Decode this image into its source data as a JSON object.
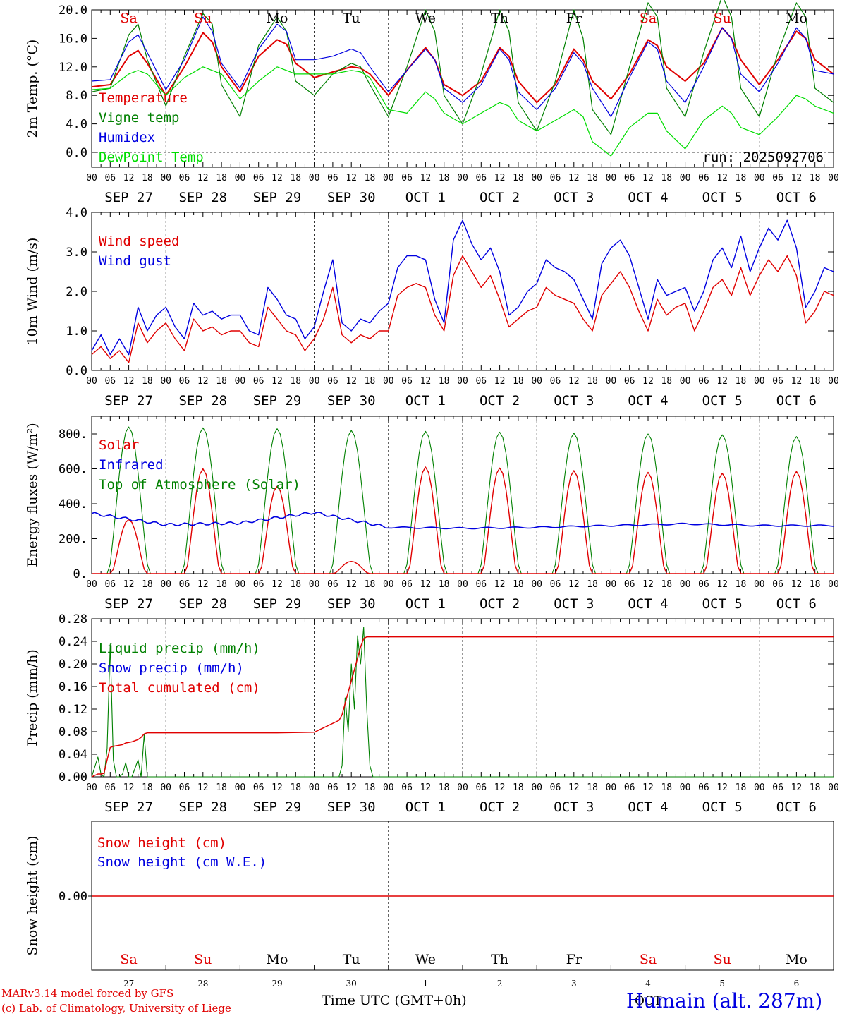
{
  "days": {
    "first_dates": [
      "SEP 27",
      "SEP 28",
      "SEP 29",
      "SEP 30",
      "OCT 1",
      "OCT 2",
      "OCT 3",
      "OCT 4",
      "OCT 5",
      "OCT 6"
    ],
    "weekday": [
      "Sa",
      "Su",
      "Mo",
      "Tu",
      "We",
      "Th",
      "Fr",
      "Sa",
      "Su",
      "Mo"
    ],
    "weekday_colors": [
      "#e00000",
      "#e00000",
      "#000000",
      "#000000",
      "#000000",
      "#000000",
      "#000000",
      "#e00000",
      "#e00000",
      "#000000"
    ],
    "day_numbers": [
      "27",
      "28",
      "29",
      "30",
      "1",
      "2",
      "3",
      "4",
      "5",
      "6"
    ],
    "hour_labels": [
      "00",
      "06",
      "12",
      "18"
    ],
    "last_hour": "00"
  },
  "footer": {
    "model": "MARv3.14 model forced by GFS",
    "credit": "(c) Lab. of Climatology, University of Liege",
    "xlabel": "Time UTC (GMT+0h)",
    "month": "OCT",
    "station": "Humain (alt. 287m)"
  },
  "colors": {
    "red": "#e00000",
    "green": "#008000",
    "blue": "#0000e0",
    "lightgreen": "#00dd00",
    "black": "#000000"
  },
  "chart_data": [
    {
      "type": "line",
      "id": "temperature",
      "ylabel": "2m Temp. (°C)",
      "ylim": [
        -2,
        20
      ],
      "yticks": [
        "0.0",
        "4.0",
        "8.0",
        "12.0",
        "16.0",
        "20.0"
      ],
      "ytick_values": [
        0,
        4,
        8,
        12,
        16,
        20
      ],
      "run_label": "run: 2025092706",
      "legend": [
        "Temperature",
        "Vigne temp",
        "Humidex",
        "DewPoint Temp"
      ],
      "x_hours": [
        0,
        6,
        12,
        15,
        18,
        24,
        30,
        36,
        39,
        42,
        48,
        54,
        60,
        63,
        66,
        72,
        78,
        84,
        87,
        90,
        96,
        102,
        108,
        111,
        114,
        120,
        126,
        132,
        135,
        138,
        144,
        150,
        156,
        159,
        162,
        168,
        174,
        180,
        183,
        186,
        192,
        198,
        204,
        207,
        210,
        216,
        222,
        228,
        231,
        234,
        240
      ],
      "series": [
        {
          "name": "Temperature",
          "color": "red",
          "values": [
            9.2,
            9.5,
            13.5,
            14.3,
            12.5,
            8.0,
            12.0,
            16.8,
            15.5,
            12.0,
            8.5,
            13.5,
            15.8,
            15.2,
            12.5,
            10.5,
            11.3,
            12.0,
            11.8,
            11.0,
            8.0,
            11.5,
            14.7,
            13.0,
            9.5,
            8.0,
            10.0,
            14.7,
            13.5,
            10.0,
            7.0,
            9.5,
            14.5,
            13.0,
            10.0,
            7.5,
            11.0,
            15.8,
            15.0,
            12.0,
            10.0,
            12.5,
            17.5,
            16.0,
            13.0,
            9.5,
            13.0,
            17.0,
            16.0,
            13.0,
            11.0
          ]
        },
        {
          "name": "Vigne temp",
          "color": "green",
          "values": [
            8.5,
            9.0,
            16.5,
            18.0,
            13.0,
            6.5,
            13.5,
            19.5,
            18.0,
            9.5,
            5.0,
            15.0,
            19.0,
            17.0,
            10.0,
            8.0,
            11.0,
            12.5,
            12.0,
            9.5,
            5.0,
            12.0,
            20.0,
            17.0,
            8.0,
            4.0,
            11.0,
            20.0,
            17.0,
            7.0,
            3.0,
            10.0,
            20.0,
            16.0,
            6.0,
            2.5,
            12.0,
            21.0,
            19.0,
            9.0,
            5.0,
            14.0,
            22.0,
            19.0,
            9.0,
            5.0,
            14.0,
            21.0,
            19.0,
            9.0,
            7.0
          ]
        },
        {
          "name": "Humidex",
          "color": "blue",
          "values": [
            10.0,
            10.2,
            15.5,
            16.5,
            14.0,
            8.8,
            13.0,
            19.0,
            17.0,
            12.5,
            9.0,
            14.5,
            18.0,
            17.0,
            13.0,
            13.0,
            13.5,
            14.5,
            14.0,
            12.0,
            8.5,
            11.5,
            14.5,
            13.0,
            9.0,
            7.0,
            9.5,
            14.5,
            13.0,
            8.5,
            6.0,
            9.0,
            14.0,
            12.5,
            9.0,
            5.0,
            10.5,
            15.5,
            14.5,
            10.0,
            7.0,
            12.0,
            17.5,
            16.0,
            11.0,
            8.5,
            12.5,
            17.5,
            16.0,
            11.5,
            11.0
          ]
        },
        {
          "name": "DewPoint Temp",
          "color": "lightgreen",
          "values": [
            8.8,
            9.0,
            11.0,
            11.5,
            11.0,
            8.0,
            10.5,
            12.0,
            11.5,
            11.0,
            7.5,
            10.0,
            12.0,
            11.5,
            11.0,
            11.0,
            11.0,
            11.5,
            11.3,
            10.5,
            6.0,
            5.5,
            8.5,
            7.5,
            5.5,
            4.0,
            5.5,
            7.0,
            6.5,
            4.5,
            3.0,
            4.5,
            6.0,
            5.0,
            1.5,
            -0.5,
            3.5,
            5.5,
            5.5,
            3.0,
            0.5,
            4.5,
            6.5,
            5.5,
            3.5,
            2.5,
            5.0,
            8.0,
            7.5,
            6.5,
            5.5
          ]
        }
      ]
    },
    {
      "type": "line",
      "id": "wind",
      "ylabel": "10m Wind (m/s)",
      "ylim": [
        0,
        4
      ],
      "yticks": [
        "0.0",
        "1.0",
        "2.0",
        "3.0",
        "4.0"
      ],
      "ytick_values": [
        0,
        1,
        2,
        3,
        4
      ],
      "legend": [
        "Wind speed",
        "Wind gust"
      ],
      "x_hours": [
        0,
        3,
        6,
        9,
        12,
        15,
        18,
        21,
        24,
        27,
        30,
        33,
        36,
        39,
        42,
        45,
        48,
        51,
        54,
        57,
        60,
        63,
        66,
        69,
        72,
        75,
        78,
        81,
        84,
        87,
        90,
        93,
        96,
        99,
        102,
        105,
        108,
        111,
        114,
        117,
        120,
        123,
        126,
        129,
        132,
        135,
        138,
        141,
        144,
        147,
        150,
        153,
        156,
        159,
        162,
        165,
        168,
        171,
        174,
        177,
        180,
        183,
        186,
        189,
        192,
        195,
        198,
        201,
        204,
        207,
        210,
        213,
        216,
        219,
        222,
        225,
        228,
        231,
        234,
        237,
        240
      ],
      "series": [
        {
          "name": "Wind speed",
          "color": "red",
          "values": [
            0.4,
            0.6,
            0.3,
            0.5,
            0.2,
            1.2,
            0.7,
            1.0,
            1.2,
            0.8,
            0.5,
            1.3,
            1.0,
            1.1,
            0.9,
            1.0,
            1.0,
            0.7,
            0.6,
            1.6,
            1.3,
            1.0,
            0.9,
            0.5,
            0.8,
            1.3,
            2.1,
            0.9,
            0.7,
            0.9,
            0.8,
            1.0,
            1.0,
            1.9,
            2.1,
            2.2,
            2.1,
            1.4,
            1.0,
            2.4,
            2.9,
            2.5,
            2.1,
            2.4,
            1.8,
            1.1,
            1.3,
            1.5,
            1.6,
            2.1,
            1.9,
            1.8,
            1.7,
            1.3,
            1.0,
            1.9,
            2.2,
            2.5,
            2.1,
            1.5,
            1.0,
            1.8,
            1.4,
            1.6,
            1.7,
            1.0,
            1.5,
            2.1,
            2.3,
            1.9,
            2.6,
            1.9,
            2.4,
            2.8,
            2.5,
            2.9,
            2.4,
            1.2,
            1.5,
            2.0,
            1.9
          ]
        },
        {
          "name": "Wind gust",
          "color": "blue",
          "values": [
            0.5,
            0.9,
            0.4,
            0.8,
            0.4,
            1.6,
            1.0,
            1.4,
            1.6,
            1.1,
            0.8,
            1.7,
            1.4,
            1.5,
            1.3,
            1.4,
            1.4,
            1.0,
            0.9,
            2.1,
            1.8,
            1.4,
            1.3,
            0.8,
            1.1,
            2.0,
            2.8,
            1.2,
            1.0,
            1.3,
            1.2,
            1.5,
            1.7,
            2.6,
            2.9,
            2.9,
            2.8,
            1.8,
            1.2,
            3.3,
            3.8,
            3.2,
            2.8,
            3.1,
            2.5,
            1.4,
            1.6,
            2.0,
            2.2,
            2.8,
            2.6,
            2.5,
            2.3,
            1.8,
            1.3,
            2.7,
            3.1,
            3.3,
            2.9,
            2.1,
            1.3,
            2.3,
            1.9,
            2.0,
            2.1,
            1.5,
            2.0,
            2.8,
            3.1,
            2.6,
            3.4,
            2.5,
            3.1,
            3.6,
            3.3,
            3.8,
            3.1,
            1.6,
            2.0,
            2.6,
            2.5
          ]
        }
      ]
    },
    {
      "type": "line",
      "id": "energy",
      "ylabel": "Energy fluxes (W/m²)",
      "ylim": [
        0,
        900
      ],
      "yticks": [
        "0.",
        "200.",
        "400.",
        "600.",
        "800."
      ],
      "ytick_values": [
        0,
        200,
        400,
        600,
        800
      ],
      "legend": [
        "Solar",
        "Infrared",
        "Top of Atmosphere (Solar)"
      ],
      "toa_peak": [
        840,
        835,
        830,
        820,
        815,
        810,
        805,
        800,
        795,
        785
      ],
      "solar_peak": [
        310,
        600,
        500,
        70,
        610,
        605,
        590,
        580,
        575,
        585
      ],
      "infrared_daily": [
        345,
        280,
        290,
        350,
        265,
        260,
        265,
        275,
        285,
        275
      ],
      "series": [
        {
          "name": "Solar",
          "color": "red"
        },
        {
          "name": "Infrared",
          "color": "blue"
        },
        {
          "name": "Top of Atmosphere (Solar)",
          "color": "green"
        }
      ]
    },
    {
      "type": "line",
      "id": "precip",
      "ylabel": "Precip (mm/h)",
      "ylim": [
        0,
        0.28
      ],
      "yticks": [
        "0.00",
        "0.04",
        "0.08",
        "0.12",
        "0.16",
        "0.20",
        "0.24",
        "0.28"
      ],
      "ytick_values": [
        0,
        0.04,
        0.08,
        0.12,
        0.16,
        0.2,
        0.24,
        0.28
      ],
      "legend": [
        "Liquid precip (mm/h)",
        "Snow precip (mm/h)",
        "Total cumulated (cm)"
      ],
      "x_hours": [
        0,
        2,
        3,
        4,
        5,
        6,
        7,
        8,
        9,
        10,
        11,
        12,
        13,
        14,
        15,
        16,
        17,
        18,
        19,
        20,
        21,
        24,
        60,
        72,
        80,
        81,
        82,
        83,
        84,
        85,
        86,
        87,
        88,
        89,
        90,
        91,
        240
      ],
      "series": [
        {
          "name": "Liquid precip (mm/h)",
          "color": "green",
          "values": [
            0,
            0.035,
            0.005,
            0.0,
            0.05,
            0.235,
            0.03,
            0.0,
            0.0,
            0.005,
            0.025,
            0.0,
            0.0,
            0.015,
            0.03,
            0.0,
            0.075,
            0.0,
            0.0,
            0.0,
            0.0,
            0.0,
            0.0,
            0.0,
            0.0,
            0.02,
            0.14,
            0.08,
            0.2,
            0.12,
            0.25,
            0.2,
            0.265,
            0.12,
            0.02,
            0.0,
            0.0
          ]
        },
        {
          "name": "Snow precip (mm/h)",
          "color": "blue",
          "values": [
            0,
            0,
            0,
            0,
            0,
            0,
            0,
            0,
            0,
            0,
            0,
            0,
            0,
            0,
            0,
            0,
            0,
            0,
            0,
            0,
            0,
            0,
            0,
            0,
            0,
            0,
            0,
            0,
            0,
            0,
            0,
            0,
            0,
            0,
            0,
            0,
            0
          ]
        },
        {
          "name": "Total cumulated (cm)",
          "color": "red",
          "values": [
            0.0,
            0.005,
            0.005,
            0.006,
            0.03,
            0.052,
            0.054,
            0.055,
            0.056,
            0.057,
            0.06,
            0.061,
            0.062,
            0.064,
            0.066,
            0.07,
            0.076,
            0.078,
            0.078,
            0.078,
            0.078,
            0.078,
            0.078,
            0.079,
            0.1,
            0.11,
            0.13,
            0.15,
            0.17,
            0.19,
            0.21,
            0.23,
            0.245,
            0.248,
            0.248,
            0.248,
            0.248
          ]
        }
      ]
    },
    {
      "type": "line",
      "id": "snow",
      "ylabel": "Snow height (cm)",
      "yticks": [
        "0.00"
      ],
      "legend": [
        "Snow height (cm)",
        "Snow height (cm W.E.)"
      ],
      "series": [
        {
          "name": "Snow height (cm)",
          "color": "red",
          "values": [
            0,
            0
          ]
        },
        {
          "name": "Snow height (cm W.E.)",
          "color": "blue",
          "values": [
            0,
            0
          ]
        }
      ]
    }
  ]
}
